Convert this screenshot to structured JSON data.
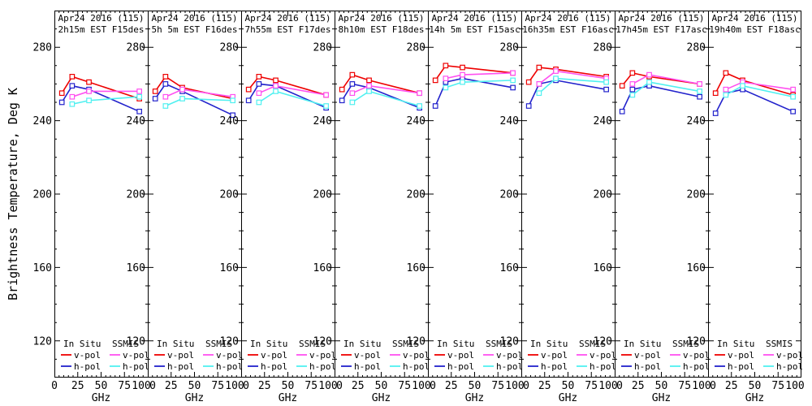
{
  "figure": {
    "background": "#ffffff",
    "axis_color": "#000000"
  },
  "chart_data": {
    "type": "line",
    "title": "",
    "ylabel": "Brightness Temperature, Deg K",
    "xlabel": "GHz",
    "xlim": [
      0,
      100
    ],
    "ylim": [
      100,
      300
    ],
    "x_ticks": [
      0,
      25,
      50,
      75,
      100
    ],
    "y_ticks": [
      280,
      240,
      200,
      160,
      120
    ],
    "x_minor_step": 5,
    "y_minor_step": 10,
    "grid": false,
    "marker": "open-square",
    "series_defs": [
      {
        "key": "insitu_v",
        "group": "In Situ",
        "label": "v-pol",
        "color": "#ee0000",
        "x": [
          8,
          19,
          37,
          91
        ]
      },
      {
        "key": "insitu_h",
        "group": "In Situ",
        "label": "h-pol",
        "color": "#2222cc",
        "x": [
          8,
          19,
          37,
          91
        ]
      },
      {
        "key": "ssmis_v",
        "group": "SSMIS",
        "label": "v-pol",
        "color": "#ff50f0",
        "x": [
          19,
          37,
          91
        ]
      },
      {
        "key": "ssmis_h",
        "group": "SSMIS",
        "label": "h-pol",
        "color": "#50f0f0",
        "x": [
          19,
          37,
          91
        ]
      }
    ],
    "legend": {
      "position": "bottom-inside-each-panel",
      "groups": [
        {
          "name": "In Situ",
          "entries": [
            {
              "key": "insitu_v",
              "label": "v-pol"
            },
            {
              "key": "insitu_h",
              "label": "h-pol"
            }
          ]
        },
        {
          "name": "SSMIS",
          "entries": [
            {
              "key": "ssmis_v",
              "label": "v-pol"
            },
            {
              "key": "ssmis_h",
              "label": "h-pol"
            }
          ]
        }
      ]
    },
    "panels": [
      {
        "title_line1": "Apr24 2016 (115)",
        "title_line2": "2h15m EST F15des",
        "series": {
          "insitu_v": [
            255,
            264,
            261,
            252
          ],
          "insitu_h": [
            250,
            259,
            257,
            245
          ],
          "ssmis_v": [
            253,
            256,
            256
          ],
          "ssmis_h": [
            249,
            251,
            253
          ]
        }
      },
      {
        "title_line1": "Apr24 2016 (115)",
        "title_line2": "5h 5m EST F16des",
        "series": {
          "insitu_v": [
            256,
            264,
            258,
            252
          ],
          "insitu_h": [
            252,
            260,
            256,
            243
          ],
          "ssmis_v": [
            253,
            257,
            253
          ],
          "ssmis_h": [
            248,
            252,
            251
          ]
        }
      },
      {
        "title_line1": "Apr24 2016 (115)",
        "title_line2": "7h55m EST F17des",
        "series": {
          "insitu_v": [
            257,
            264,
            262,
            254
          ],
          "insitu_h": [
            251,
            260,
            259,
            247
          ],
          "ssmis_v": [
            255,
            259,
            254
          ],
          "ssmis_h": [
            250,
            256,
            248
          ]
        }
      },
      {
        "title_line1": "Apr24 2016 (115)",
        "title_line2": "8h10m EST F18des",
        "series": {
          "insitu_v": [
            257,
            265,
            262,
            255
          ],
          "insitu_h": [
            251,
            260,
            258,
            247
          ],
          "ssmis_v": [
            255,
            259,
            255
          ],
          "ssmis_h": [
            250,
            256,
            248
          ]
        }
      },
      {
        "title_line1": "Apr24 2016 (115)",
        "title_line2": "14h 5m EST F15asc",
        "series": {
          "insitu_v": [
            262,
            270,
            269,
            266
          ],
          "insitu_h": [
            248,
            261,
            263,
            258
          ],
          "ssmis_v": [
            263,
            265,
            266
          ],
          "ssmis_h": [
            258,
            261,
            262
          ]
        }
      },
      {
        "title_line1": "Apr24 2016 (115)",
        "title_line2": "16h35m EST F16asc",
        "series": {
          "insitu_v": [
            261,
            269,
            268,
            264
          ],
          "insitu_h": [
            248,
            260,
            262,
            257
          ],
          "ssmis_v": [
            260,
            267,
            263
          ],
          "ssmis_h": [
            255,
            263,
            261
          ]
        }
      },
      {
        "title_line1": "Apr24 2016 (115)",
        "title_line2": "17h45m EST F17asc",
        "series": {
          "insitu_v": [
            259,
            266,
            264,
            260
          ],
          "insitu_h": [
            245,
            257,
            259,
            253
          ],
          "ssmis_v": [
            260,
            265,
            260
          ],
          "ssmis_h": [
            254,
            261,
            256
          ]
        }
      },
      {
        "title_line1": "Apr24 2016 (115)",
        "title_line2": "19h40m EST F18asc",
        "series": {
          "insitu_v": [
            255,
            266,
            262,
            254
          ],
          "insitu_h": [
            244,
            255,
            257,
            245
          ],
          "ssmis_v": [
            257,
            261,
            257
          ],
          "ssmis_h": [
            254,
            259,
            253
          ]
        }
      }
    ]
  }
}
